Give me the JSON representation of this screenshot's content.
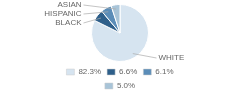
{
  "chart_data": {
    "type": "pie",
    "categories": [
      "WHITE",
      "BLACK",
      "HISPANIC",
      "ASIAN"
    ],
    "values": [
      82.3,
      6.6,
      6.1,
      5.0
    ],
    "value_labels": [
      "82.3%",
      "6.6%",
      "6.1%",
      "5.0%"
    ],
    "colors": [
      "#d6e4f0",
      "#2e5f8a",
      "#5b8db8",
      "#a8c4d8"
    ],
    "legend": "bottom"
  }
}
